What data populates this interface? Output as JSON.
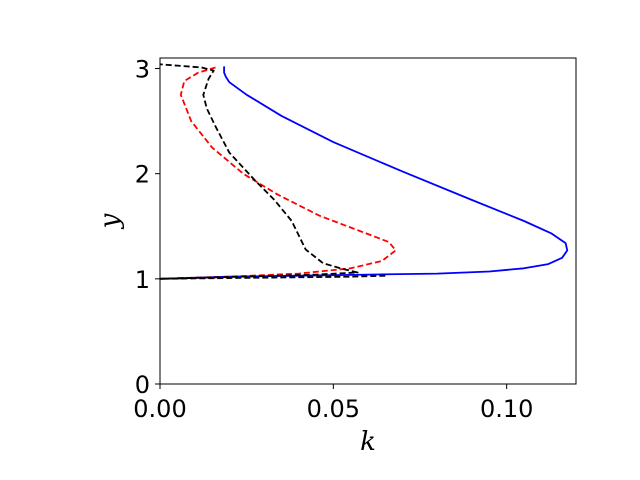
{
  "chart_data": {
    "type": "line",
    "title": "",
    "xlabel": "k",
    "ylabel": "y",
    "xlim": [
      0.0,
      0.12
    ],
    "ylim": [
      0,
      3.1
    ],
    "xticks": [
      0.0,
      0.05,
      0.1
    ],
    "xtick_labels": [
      "0.00",
      "0.05",
      "0.10"
    ],
    "yticks": [
      0,
      1,
      2,
      3
    ],
    "ytick_labels": [
      "0",
      "1",
      "2",
      "3"
    ],
    "grid": false,
    "legend": "none",
    "series": [
      {
        "color": "#0000ff",
        "style": "solid",
        "x": [
          0.0,
          0.02,
          0.04,
          0.06,
          0.08,
          0.095,
          0.105,
          0.112,
          0.116,
          0.1175,
          0.117,
          0.113,
          0.105,
          0.09,
          0.07,
          0.05,
          0.035,
          0.025,
          0.02,
          0.019,
          0.0185,
          0.0185
        ],
        "y": [
          1.0,
          1.02,
          1.03,
          1.04,
          1.05,
          1.07,
          1.1,
          1.14,
          1.2,
          1.27,
          1.34,
          1.43,
          1.55,
          1.75,
          2.02,
          2.3,
          2.55,
          2.75,
          2.87,
          2.92,
          2.96,
          3.02
        ]
      },
      {
        "color": "#ff0000",
        "style": "dashed",
        "x": [
          0.0,
          0.02,
          0.04,
          0.055,
          0.064,
          0.068,
          0.066,
          0.058,
          0.046,
          0.034,
          0.024,
          0.015,
          0.009,
          0.006,
          0.007,
          0.011,
          0.016
        ],
        "y": [
          1.0,
          1.02,
          1.05,
          1.1,
          1.17,
          1.27,
          1.35,
          1.45,
          1.6,
          1.8,
          2.0,
          2.25,
          2.5,
          2.75,
          2.88,
          2.96,
          3.01
        ]
      },
      {
        "color": "#000000",
        "style": "dashed",
        "x": [
          0.065,
          0.055,
          0.0,
          0.045,
          0.057,
          0.052,
          0.047,
          0.042,
          0.038,
          0.033,
          0.027,
          0.02,
          0.016,
          0.0135,
          0.0125,
          0.014,
          0.0155,
          0.012,
          0.0
        ],
        "y": [
          1.03,
          1.02,
          1.0,
          1.04,
          1.06,
          1.1,
          1.15,
          1.28,
          1.55,
          1.75,
          1.95,
          2.2,
          2.45,
          2.62,
          2.75,
          2.9,
          2.98,
          3.01,
          3.04
        ]
      }
    ]
  }
}
